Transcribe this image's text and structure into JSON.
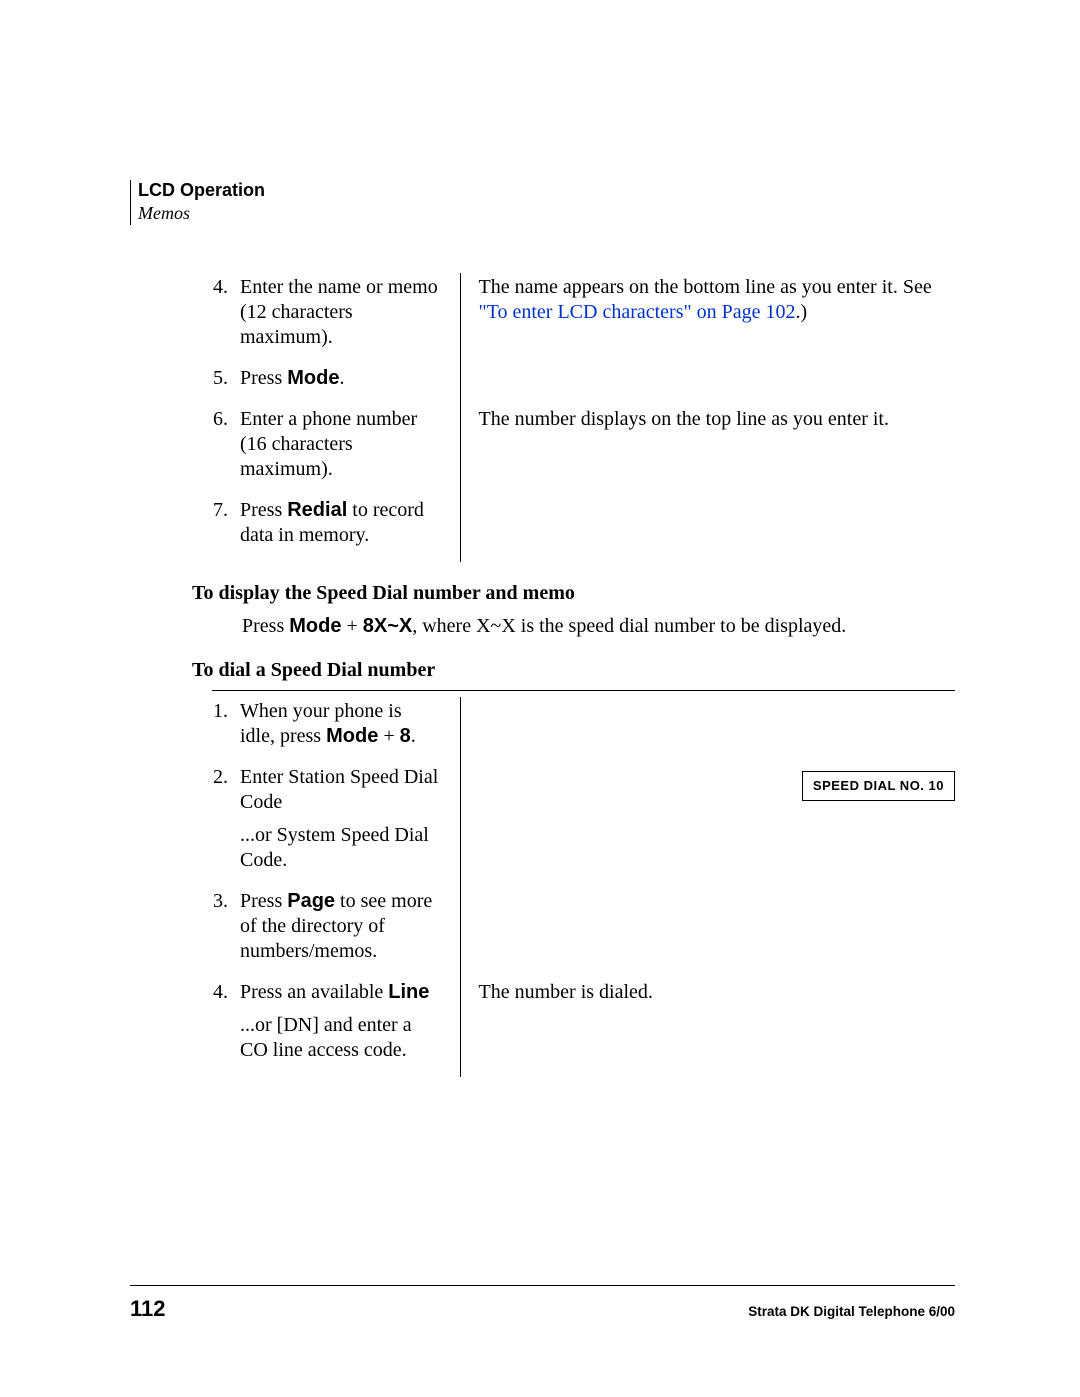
{
  "header": {
    "title": "LCD Operation",
    "sub": "Memos"
  },
  "steps1": [
    {
      "num": "4.",
      "left_parts": [
        {
          "t": "Enter the name or memo (12 characters maximum)."
        }
      ],
      "right_parts": [
        {
          "t": "The name appears on the bottom line as you enter it. See "
        },
        {
          "t": "\"To enter LCD characters\" on Page 102",
          "cls": "link-blue"
        },
        {
          "t": ".)"
        }
      ]
    },
    {
      "num": "5.",
      "left_parts": [
        {
          "t": "Press "
        },
        {
          "t": "Mode",
          "cls": "sans-bold"
        },
        {
          "t": "."
        }
      ],
      "right_parts": []
    },
    {
      "num": "6.",
      "left_parts": [
        {
          "t": "Enter a phone number (16 characters maximum)."
        }
      ],
      "right_parts": [
        {
          "t": "The number displays on the top line as you enter it."
        }
      ]
    },
    {
      "num": "7.",
      "left_parts": [
        {
          "t": "Press "
        },
        {
          "t": "Redial",
          "cls": "sans-bold"
        },
        {
          "t": " to record data in memory."
        }
      ],
      "right_parts": []
    }
  ],
  "midHeading": "To display the Speed Dial number and memo",
  "midBody": [
    {
      "t": "Press "
    },
    {
      "t": "Mode",
      "cls": "sans-bold"
    },
    {
      "t": " + "
    },
    {
      "t": "8X~X",
      "cls": "sans-bold"
    },
    {
      "t": ", where X~X is the speed dial number to be displayed."
    }
  ],
  "heading2": "To dial a Speed Dial number",
  "steps2": [
    {
      "num": "1.",
      "left_parts": [
        {
          "t": "When your phone is idle, press "
        },
        {
          "t": "Mode",
          "cls": "sans-bold"
        },
        {
          "t": " + "
        },
        {
          "t": "8",
          "cls": "sans-bold"
        },
        {
          "t": "."
        }
      ],
      "right_parts": []
    },
    {
      "num": "2.",
      "left_parts": [
        {
          "t": "Enter Station Speed Dial Code"
        }
      ],
      "sub_left": [
        {
          "t": "...or System Speed Dial Code."
        }
      ],
      "right_parts": [],
      "display_box": "SPEED DIAL NO. 10"
    },
    {
      "num": "3.",
      "left_parts": [
        {
          "t": "Press "
        },
        {
          "t": "Page",
          "cls": "sans-bold"
        },
        {
          "t": " to see more of the directory of numbers/memos."
        }
      ],
      "right_parts": []
    },
    {
      "num": "4.",
      "left_parts": [
        {
          "t": "Press an available "
        },
        {
          "t": "Line",
          "cls": "sans-bold"
        }
      ],
      "sub_left": [
        {
          "t": "...or [DN] and enter a CO line access code."
        }
      ],
      "right_parts": [
        {
          "t": "The number is dialed."
        }
      ]
    }
  ],
  "footer": {
    "page": "112",
    "right": "Strata DK Digital Telephone   6/00"
  }
}
